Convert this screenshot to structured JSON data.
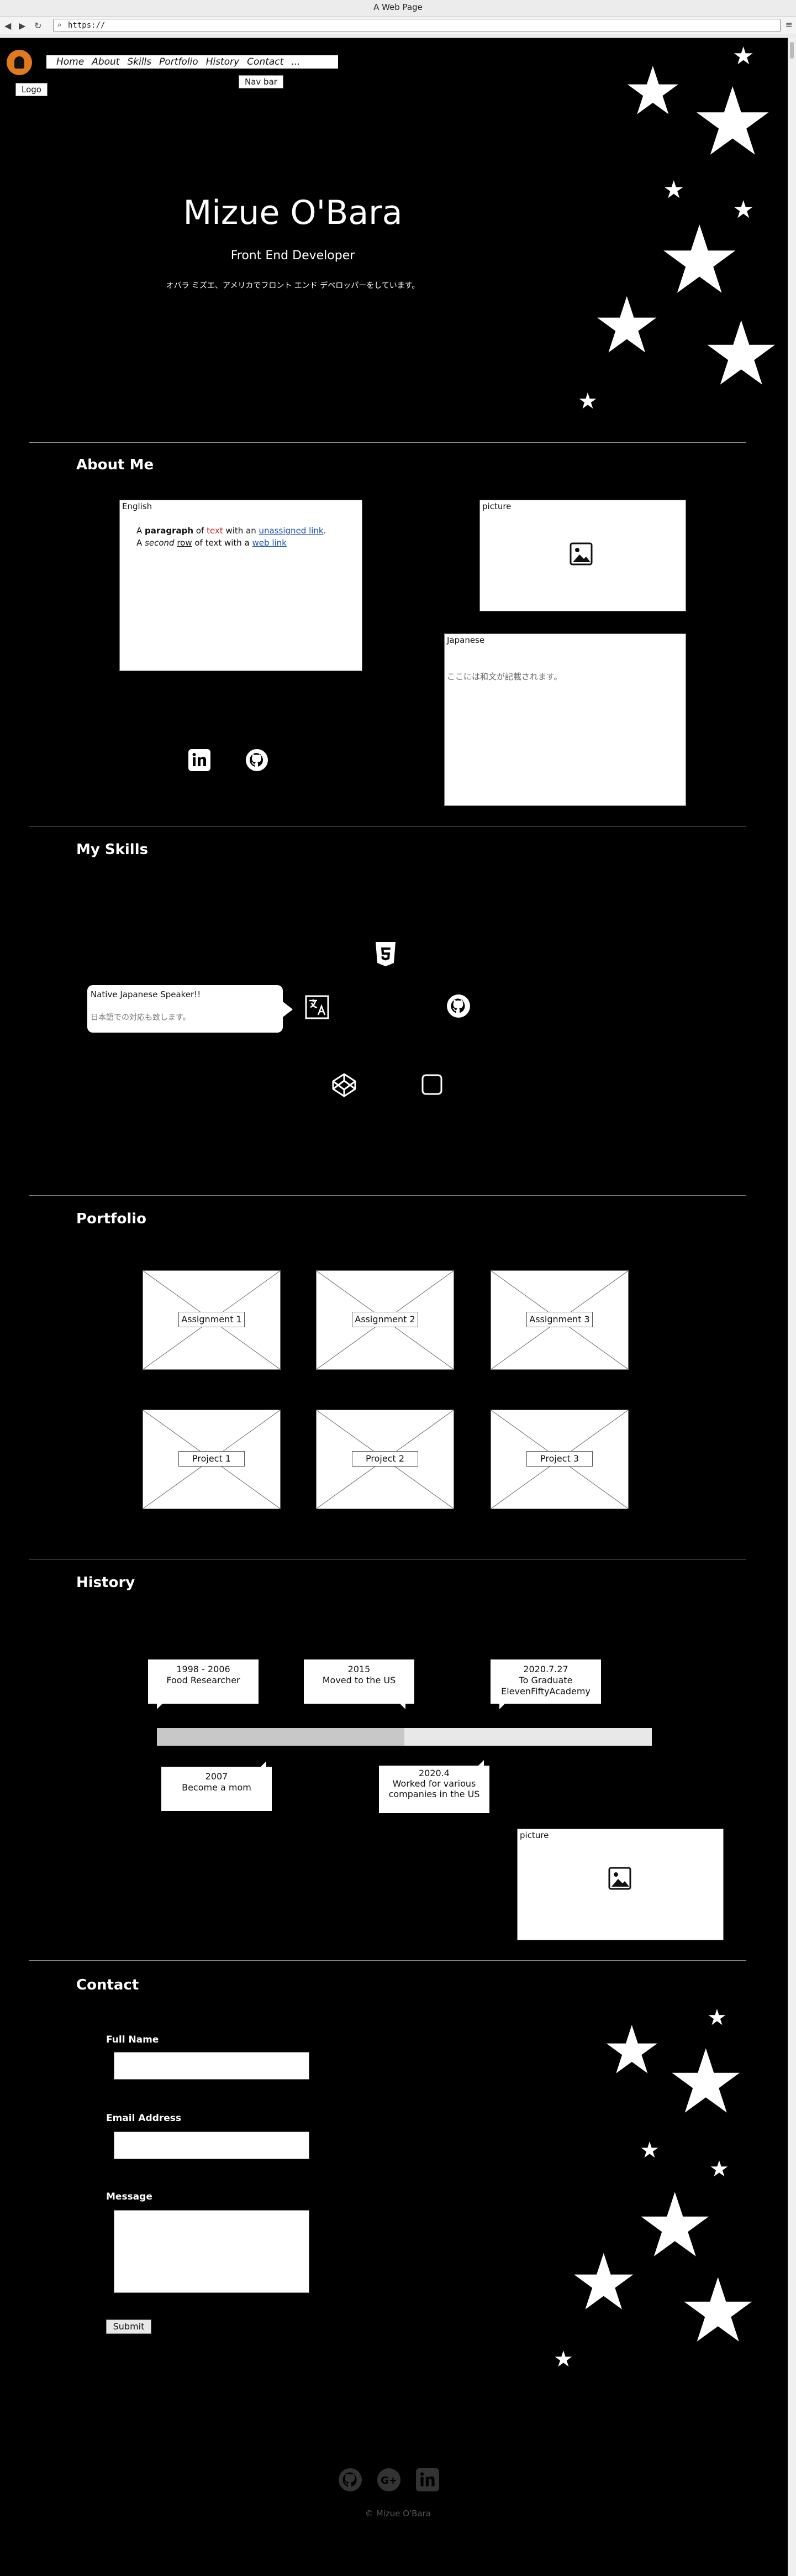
{
  "browser": {
    "window_title": "A Web Page",
    "url": "https://"
  },
  "header": {
    "logo_tip": "Logo",
    "nav_tip": "Nav bar",
    "nav_items": [
      "Home",
      "About",
      "Skills",
      "Portfolio",
      "History",
      "Contact",
      "..."
    ]
  },
  "hero": {
    "name": "Mizue O'Bara",
    "role": "Front End Developer",
    "tagline_jp": "オバラ ミズエ、アメリカでフロント エンド デベロッパーをしています。"
  },
  "about": {
    "title": "About Me",
    "english_caption": "English",
    "para_line1": {
      "a": "A ",
      "bold": "paragraph",
      "b": " of ",
      "red": "text",
      "c": " with an ",
      "link": "unassigned link",
      "d": "."
    },
    "para_line2": {
      "a": "A ",
      "italic": "second",
      "b": " ",
      "under": "row",
      "c": " of text with a ",
      "link": "web link",
      "d": ""
    },
    "picture_caption": "picture",
    "japanese_caption": "Japanese",
    "japanese_text": "ここには和文が記載されます。",
    "icons": [
      "linkedin-icon",
      "github-icon"
    ]
  },
  "skills": {
    "title": "My Skills",
    "tooltip_title": "Native Japanese Speaker!!",
    "tooltip_text": "日本語での対応も致します。",
    "icons": [
      "html5-icon",
      "translate-icon",
      "github-icon",
      "codepen-icon",
      "square-icon"
    ]
  },
  "portfolio": {
    "title": "Portfolio",
    "items": [
      "Assignment 1",
      "Assignment 2",
      "Assignment 3",
      "Project 1",
      "Project 2",
      "Project 3"
    ]
  },
  "history": {
    "title": "History",
    "events_top": [
      {
        "date": "1998 - 2006",
        "text": "Food Researcher"
      },
      {
        "date": "2015",
        "text": "Moved to the US"
      },
      {
        "date": "2020.7.27",
        "text": "To Graduate ElevenFiftyAcademy"
      }
    ],
    "events_bottom": [
      {
        "date": "2007",
        "text": "Become a mom"
      },
      {
        "date": "2020.4",
        "text": "Worked for various companies in the US"
      }
    ],
    "progress": 0.5,
    "picture_caption": "picture"
  },
  "contact": {
    "title": "Contact",
    "name_label": "Full Name",
    "email_label": "Email Address",
    "message_label": "Message",
    "submit_label": "Submit"
  },
  "footer": {
    "copyright": "© Mizue O'Bara",
    "icons": [
      "github-icon",
      "google-plus-icon",
      "linkedin-icon"
    ]
  }
}
